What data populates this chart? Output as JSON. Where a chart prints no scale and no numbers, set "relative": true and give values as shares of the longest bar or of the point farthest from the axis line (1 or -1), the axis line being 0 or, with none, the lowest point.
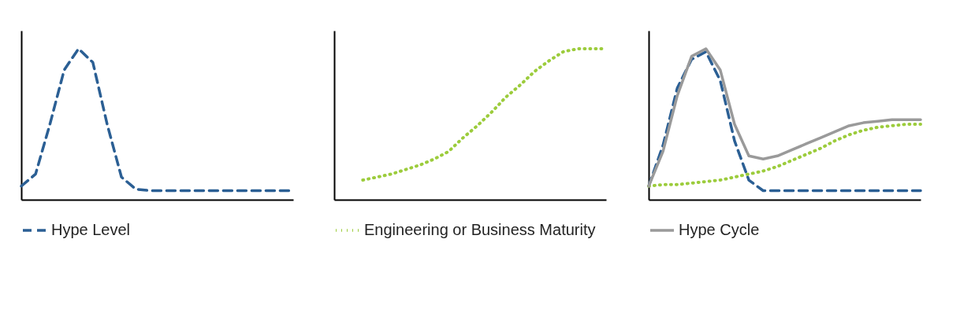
{
  "chart_data": [
    {
      "type": "line",
      "relative": true,
      "categories": [
        null,
        null,
        null,
        null,
        null,
        null,
        null,
        null,
        null,
        null,
        null,
        null,
        null,
        null,
        null,
        null,
        null,
        null,
        null,
        null
      ],
      "legend": "bottom",
      "tick_labels": false,
      "grid": false,
      "marker": "none",
      "series": [
        {
          "name": "Hype Level",
          "color": "#2b5f94",
          "line_style": "dashed",
          "values": [
            0.09,
            0.17,
            0.5,
            0.86,
            1.0,
            0.91,
            0.5,
            0.15,
            0.07,
            0.06,
            0.06,
            0.06,
            0.06,
            0.06,
            0.06,
            0.06,
            0.06,
            0.06,
            0.06,
            0.06
          ]
        }
      ]
    },
    {
      "type": "line",
      "relative": true,
      "categories": [
        null,
        null,
        null,
        null,
        null,
        null,
        null,
        null,
        null,
        null,
        null,
        null,
        null,
        null,
        null,
        null,
        null,
        null,
        null,
        null
      ],
      "legend": "bottom",
      "tick_labels": false,
      "grid": false,
      "marker": "none",
      "series": [
        {
          "name": "Engineering or Business Maturity",
          "color": "#9ccc3c",
          "line_style": "dotted",
          "values": [
            null,
            null,
            0.13,
            0.15,
            0.17,
            0.2,
            0.23,
            0.27,
            0.32,
            0.41,
            0.49,
            0.58,
            0.68,
            0.76,
            0.85,
            0.92,
            0.98,
            1.0,
            1.0,
            1.0
          ]
        }
      ]
    },
    {
      "type": "line",
      "relative": true,
      "categories": [
        null,
        null,
        null,
        null,
        null,
        null,
        null,
        null,
        null,
        null,
        null,
        null,
        null,
        null,
        null,
        null,
        null,
        null,
        null,
        null
      ],
      "legend": "bottom",
      "tick_labels": false,
      "grid": false,
      "marker": "none",
      "series": [
        {
          "color": "#2b5f94",
          "line_style": "dashed",
          "values": [
            0.09,
            0.36,
            0.74,
            0.93,
            0.98,
            0.79,
            0.39,
            0.13,
            0.06,
            0.06,
            0.06,
            0.06,
            0.06,
            0.06,
            0.06,
            0.06,
            0.06,
            0.06,
            0.06,
            0.06
          ]
        },
        {
          "color": "#9ccc3c",
          "line_style": "dotted",
          "values": [
            0.09,
            0.1,
            0.1,
            0.11,
            0.12,
            0.13,
            0.15,
            0.17,
            0.19,
            0.22,
            0.26,
            0.3,
            0.34,
            0.39,
            0.43,
            0.46,
            0.48,
            0.49,
            0.5,
            0.5
          ]
        },
        {
          "name": "Hype Cycle",
          "color": "#9a9a9a",
          "line_style": "solid",
          "values": [
            0.09,
            0.32,
            0.69,
            0.95,
            1.0,
            0.86,
            0.5,
            0.29,
            0.27,
            0.29,
            0.33,
            0.37,
            0.41,
            0.45,
            0.49,
            0.51,
            0.52,
            0.53,
            0.53,
            0.53
          ]
        }
      ]
    }
  ]
}
